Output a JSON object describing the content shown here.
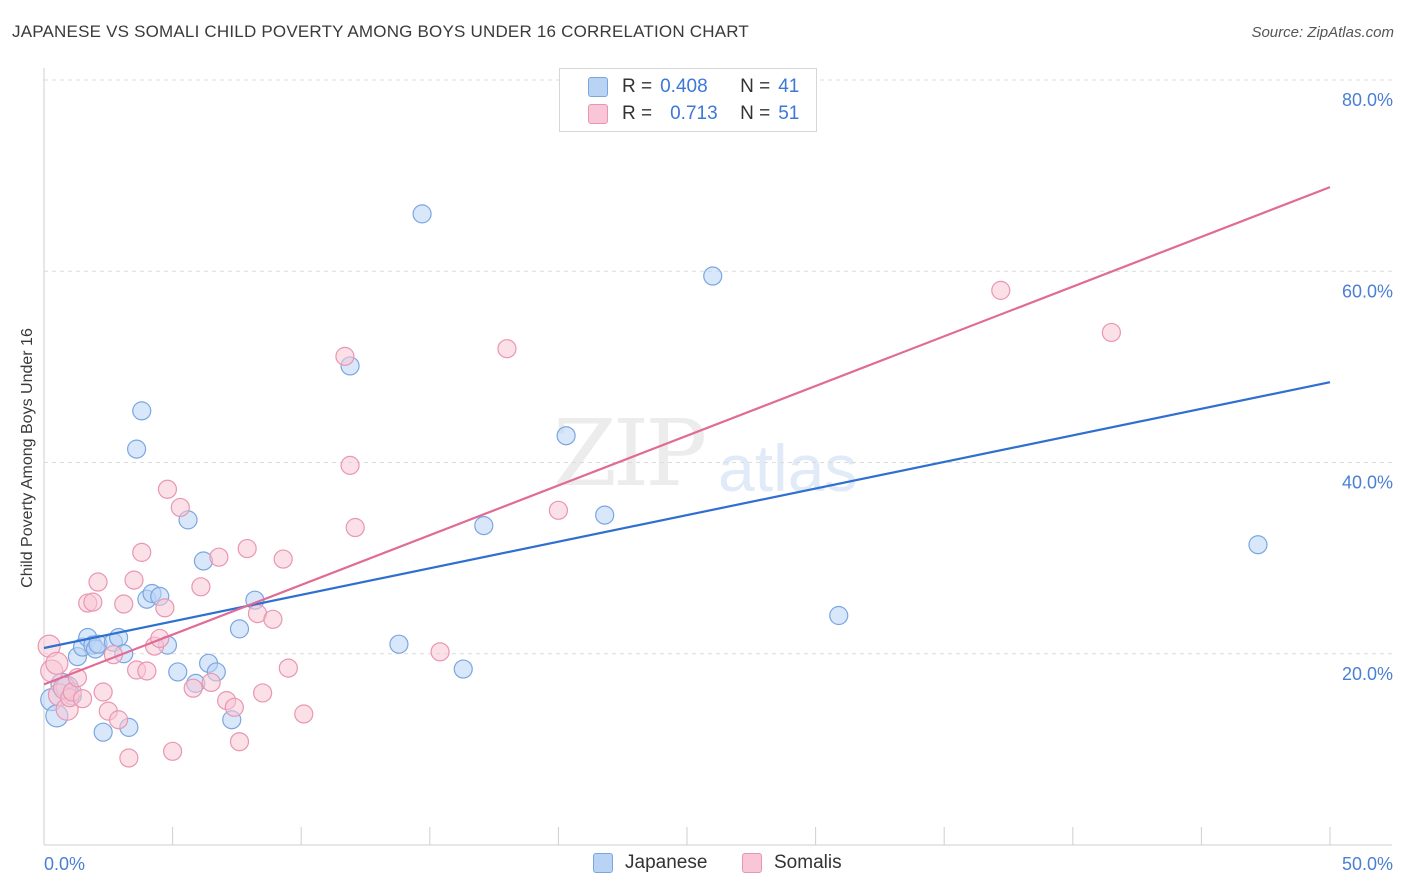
{
  "header": {
    "title": "JAPANESE VS SOMALI CHILD POVERTY AMONG BOYS UNDER 16 CORRELATION CHART",
    "source": "Source: ZipAtlas.com"
  },
  "watermark": {
    "zip": "ZIP",
    "atlas": "atlas"
  },
  "legend": {
    "japanese": {
      "r_label": "R =",
      "r_value": "0.408",
      "n_label": "N =",
      "n_value": "41"
    },
    "somalis": {
      "r_label": "R =",
      "r_value": "0.713",
      "n_label": "N =",
      "n_value": "51"
    }
  },
  "colors": {
    "japanese_fill": "#b9d3f5",
    "japanese_stroke": "#7aa6e0",
    "japanese_line": "#2f6fd0",
    "somalis_fill": "#f8c6d6",
    "somalis_stroke": "#e996b1",
    "somalis_line": "#e06b94",
    "grid": "#dcdcdc",
    "tick_text": "#4a7fd4"
  },
  "chart_data": {
    "type": "scatter",
    "title": "JAPANESE VS SOMALI CHILD POVERTY AMONG BOYS UNDER 16 CORRELATION CHART",
    "xlabel": "",
    "ylabel": "Child Poverty Among Boys Under 16",
    "xlim": [
      0,
      50
    ],
    "ylim": [
      0,
      80
    ],
    "x_tick_labels": [
      {
        "value": 0,
        "label": "0.0%"
      },
      {
        "value": 50,
        "label": "50.0%"
      }
    ],
    "y_tick_labels": [
      {
        "value": 20,
        "label": "20.0%"
      },
      {
        "value": 40,
        "label": "40.0%"
      },
      {
        "value": 60,
        "label": "60.0%"
      },
      {
        "value": 80,
        "label": "80.0%"
      }
    ],
    "series": [
      {
        "name": "Japanese",
        "points": [
          [
            0.3,
            15.2
          ],
          [
            0.5,
            13.5
          ],
          [
            0.7,
            16.8
          ],
          [
            0.9,
            16.5
          ],
          [
            1.1,
            15.6
          ],
          [
            1.3,
            19.7
          ],
          [
            1.5,
            20.7
          ],
          [
            1.7,
            21.7
          ],
          [
            1.9,
            20.9
          ],
          [
            2.0,
            20.5
          ],
          [
            2.1,
            21.0
          ],
          [
            2.3,
            11.8
          ],
          [
            2.7,
            21.2
          ],
          [
            2.9,
            21.7
          ],
          [
            3.1,
            20.0
          ],
          [
            3.3,
            12.3
          ],
          [
            3.6,
            41.4
          ],
          [
            3.8,
            45.4
          ],
          [
            4.0,
            25.7
          ],
          [
            4.2,
            26.3
          ],
          [
            4.5,
            26.0
          ],
          [
            4.8,
            20.9
          ],
          [
            5.2,
            18.1
          ],
          [
            5.6,
            34.0
          ],
          [
            5.9,
            16.9
          ],
          [
            6.2,
            29.7
          ],
          [
            6.4,
            19.0
          ],
          [
            6.7,
            18.1
          ],
          [
            7.3,
            13.1
          ],
          [
            7.6,
            22.6
          ],
          [
            8.2,
            25.6
          ],
          [
            11.9,
            50.1
          ],
          [
            13.8,
            21.0
          ],
          [
            14.7,
            66.0
          ],
          [
            16.3,
            18.4
          ],
          [
            17.1,
            33.4
          ],
          [
            20.3,
            42.8
          ],
          [
            21.8,
            34.5
          ],
          [
            26.0,
            59.5
          ],
          [
            30.9,
            24.0
          ],
          [
            47.2,
            31.4
          ]
        ],
        "trend": {
          "x": [
            0,
            50
          ],
          "y": [
            20.6,
            48.4
          ]
        }
      },
      {
        "name": "Somalis",
        "points": [
          [
            0.2,
            20.8
          ],
          [
            0.3,
            18.2
          ],
          [
            0.5,
            19.0
          ],
          [
            0.6,
            15.7
          ],
          [
            0.8,
            16.4
          ],
          [
            0.9,
            14.2
          ],
          [
            1.0,
            15.4
          ],
          [
            1.1,
            16.0
          ],
          [
            1.3,
            17.5
          ],
          [
            1.5,
            15.3
          ],
          [
            1.7,
            25.3
          ],
          [
            1.9,
            25.4
          ],
          [
            2.1,
            27.5
          ],
          [
            2.3,
            16.0
          ],
          [
            2.5,
            14.0
          ],
          [
            2.7,
            19.9
          ],
          [
            2.9,
            13.1
          ],
          [
            3.1,
            25.2
          ],
          [
            3.3,
            9.1
          ],
          [
            3.5,
            27.7
          ],
          [
            3.6,
            18.3
          ],
          [
            3.8,
            30.6
          ],
          [
            4.0,
            18.2
          ],
          [
            4.3,
            20.8
          ],
          [
            4.5,
            21.6
          ],
          [
            4.7,
            24.8
          ],
          [
            4.8,
            37.2
          ],
          [
            5.0,
            9.8
          ],
          [
            5.3,
            35.3
          ],
          [
            5.8,
            16.4
          ],
          [
            6.1,
            27.0
          ],
          [
            6.5,
            17.0
          ],
          [
            6.8,
            30.1
          ],
          [
            7.1,
            15.1
          ],
          [
            7.4,
            14.4
          ],
          [
            7.6,
            10.8
          ],
          [
            7.9,
            31.0
          ],
          [
            8.3,
            24.2
          ],
          [
            8.5,
            15.9
          ],
          [
            8.9,
            23.6
          ],
          [
            9.3,
            29.9
          ],
          [
            9.5,
            18.5
          ],
          [
            10.1,
            13.7
          ],
          [
            11.7,
            51.1
          ],
          [
            11.9,
            39.7
          ],
          [
            12.1,
            33.2
          ],
          [
            15.4,
            20.2
          ],
          [
            18.0,
            51.9
          ],
          [
            20.0,
            35.0
          ],
          [
            37.2,
            58.0
          ],
          [
            41.5,
            53.6
          ]
        ],
        "trend": {
          "x": [
            0,
            50
          ],
          "y": [
            16.8,
            68.8
          ]
        }
      }
    ],
    "bottom_legend": [
      "Japanese",
      "Somalis"
    ],
    "grid": true
  }
}
